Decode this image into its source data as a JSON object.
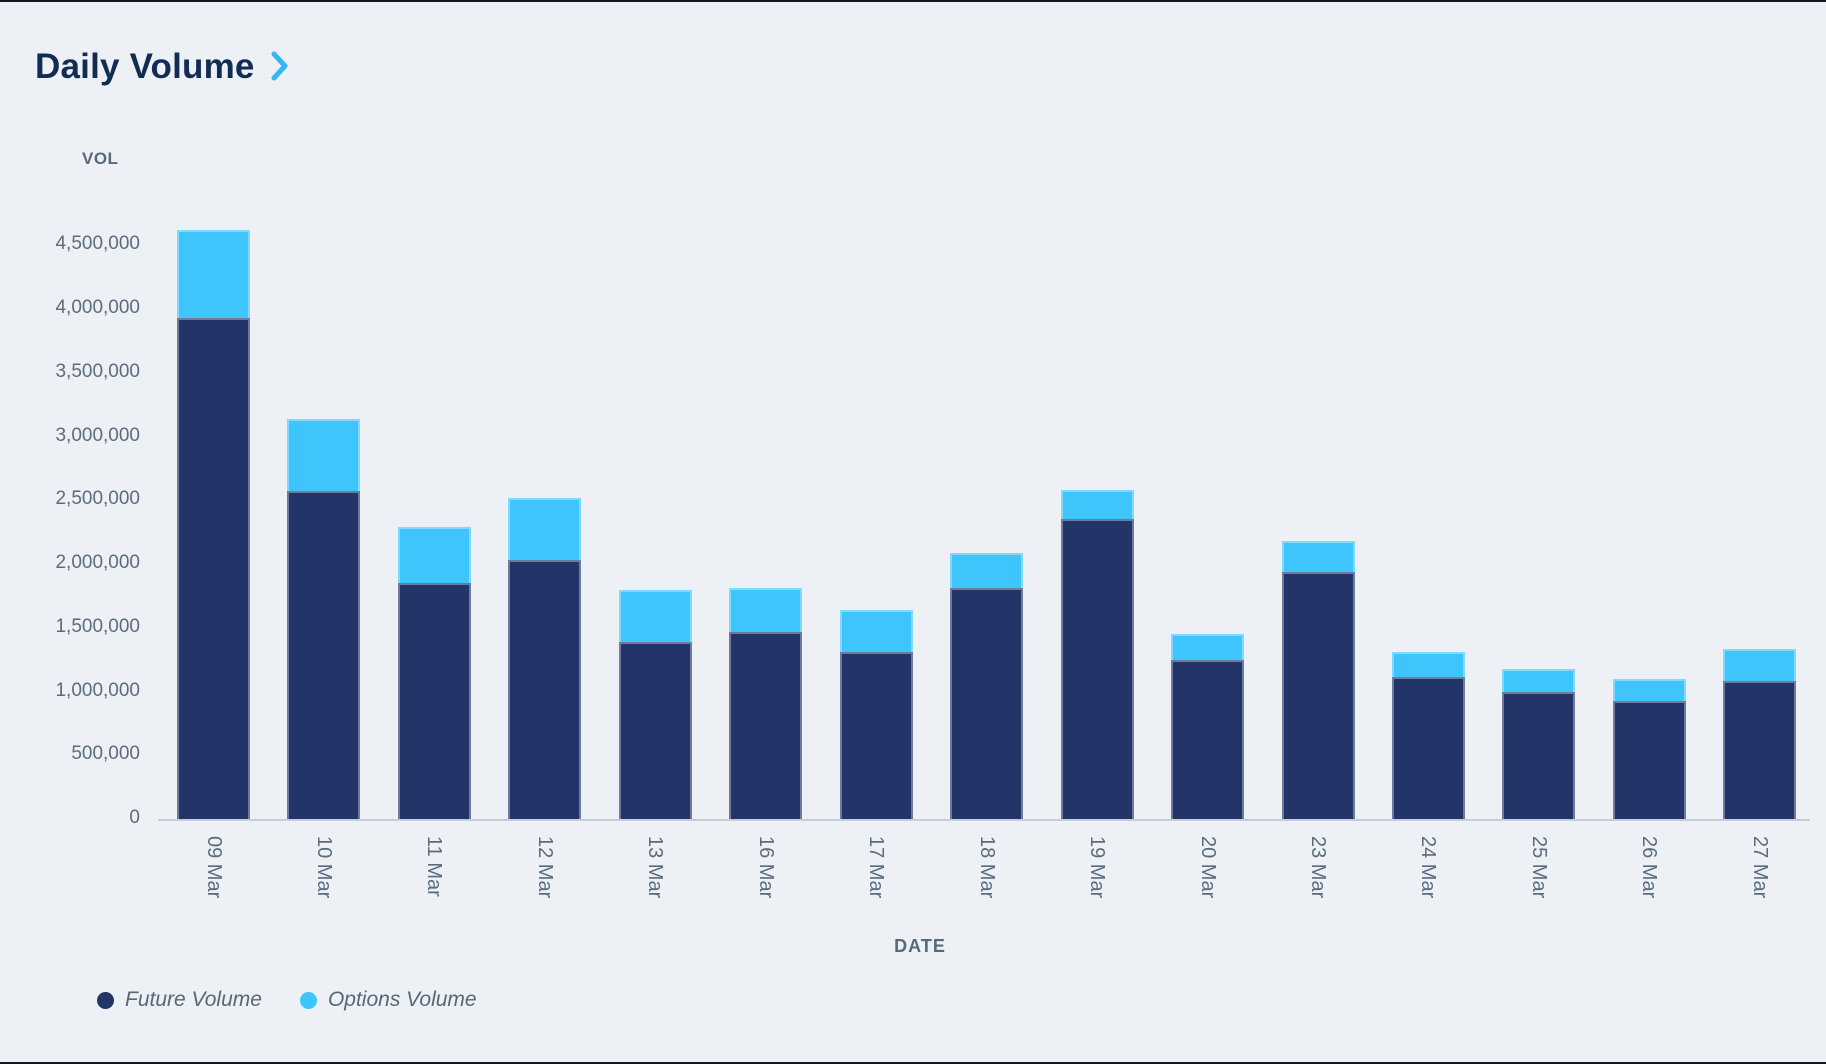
{
  "title": "Daily Volume",
  "y_axis": {
    "title": "VOL",
    "ticks": [
      "0",
      "500,000",
      "1,000,000",
      "1,500,000",
      "2,000,000",
      "2,500,000",
      "3,000,000",
      "3,500,000",
      "4,000,000",
      "4,500,000"
    ]
  },
  "x_axis": {
    "title": "DATE"
  },
  "legend": [
    {
      "label": "Future Volume",
      "color": "#223468"
    },
    {
      "label": "Options Volume",
      "color": "#3ec6fc"
    }
  ],
  "colors": {
    "background": "#edf1f6",
    "title_text": "#132c52",
    "chevron": "#38b6f3",
    "axis_text": "#5b6c7d",
    "future_bar": "#223468",
    "options_bar": "#3ec6fc"
  },
  "chart_data": {
    "type": "bar",
    "stacked": true,
    "title": "Daily Volume",
    "xlabel": "DATE",
    "ylabel": "VOL",
    "ylim": [
      0,
      4500000
    ],
    "tick_step": 500000,
    "grid": false,
    "legend_position": "bottom-left",
    "categories": [
      "09 Mar",
      "10 Mar",
      "11 Mar",
      "12 Mar",
      "13 Mar",
      "16 Mar",
      "17 Mar",
      "18 Mar",
      "19 Mar",
      "20 Mar",
      "23 Mar",
      "24 Mar",
      "25 Mar",
      "26 Mar",
      "27 Mar"
    ],
    "series": [
      {
        "name": "Future Volume",
        "color": "#223468",
        "values": [
          3930000,
          2570000,
          1850000,
          2030000,
          1390000,
          1470000,
          1310000,
          1810000,
          2350000,
          1250000,
          1940000,
          1110000,
          1000000,
          925000,
          1080000
        ]
      },
      {
        "name": "Options Volume",
        "color": "#3ec6fc",
        "values": [
          690000,
          570000,
          440000,
          490000,
          410000,
          340000,
          330000,
          280000,
          230000,
          200000,
          240000,
          200000,
          175000,
          175000,
          250000
        ]
      }
    ],
    "totals": [
      4620000,
      3140000,
      2290000,
      2520000,
      1800000,
      1810000,
      1640000,
      2090000,
      2580000,
      1450000,
      2180000,
      1310000,
      1175000,
      1100000,
      1330000
    ]
  }
}
